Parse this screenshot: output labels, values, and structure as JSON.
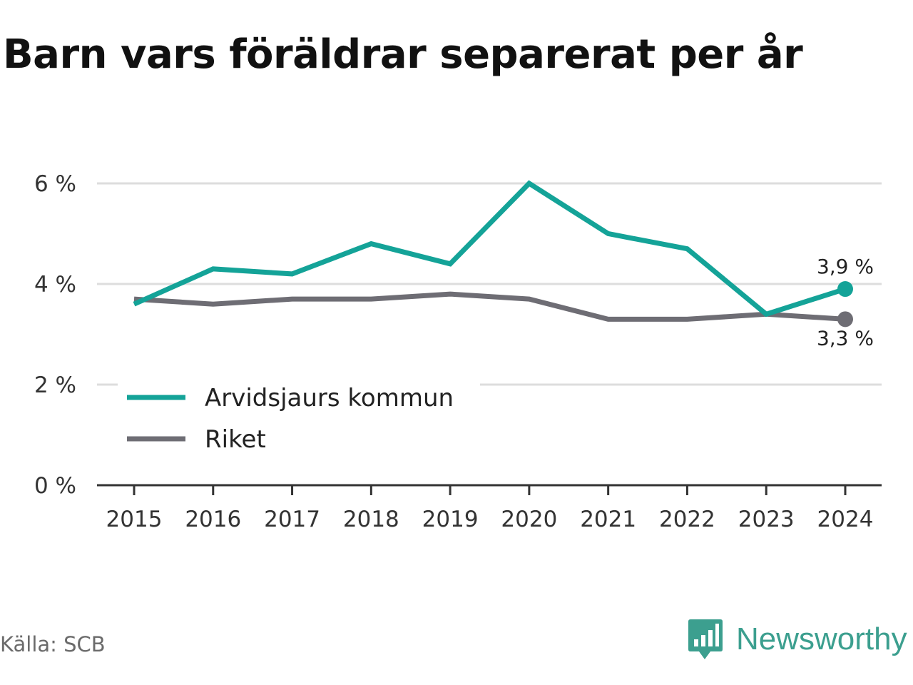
{
  "title": "Barn vars föräldrar separerat per år",
  "source": "Källa: SCB",
  "brand": {
    "name": "Newsworthy",
    "icon": "bar-chart-speech-icon",
    "color": "#3c9f8f"
  },
  "chart_data": {
    "type": "line",
    "title": "Barn vars föräldrar separerat per år",
    "x": [
      "2015",
      "2016",
      "2017",
      "2018",
      "2019",
      "2020",
      "2021",
      "2022",
      "2023",
      "2024"
    ],
    "ylim": [
      0,
      6
    ],
    "yticks": [
      0,
      2,
      4,
      6
    ],
    "ytick_labels": [
      "0 %",
      "2 %",
      "4 %",
      "6 %"
    ],
    "grid": true,
    "legend_position": "lower-left",
    "series": [
      {
        "name": "Arvidsjaurs kommun",
        "color": "#14a398",
        "values": [
          3.6,
          4.3,
          4.2,
          4.8,
          4.4,
          6.0,
          5.0,
          4.7,
          3.4,
          3.9
        ],
        "end_label": "3,9 %"
      },
      {
        "name": "Riket",
        "color": "#6e6d74",
        "values": [
          3.7,
          3.6,
          3.7,
          3.7,
          3.8,
          3.7,
          3.3,
          3.3,
          3.4,
          3.3
        ],
        "end_label": "3,3 %"
      }
    ]
  }
}
